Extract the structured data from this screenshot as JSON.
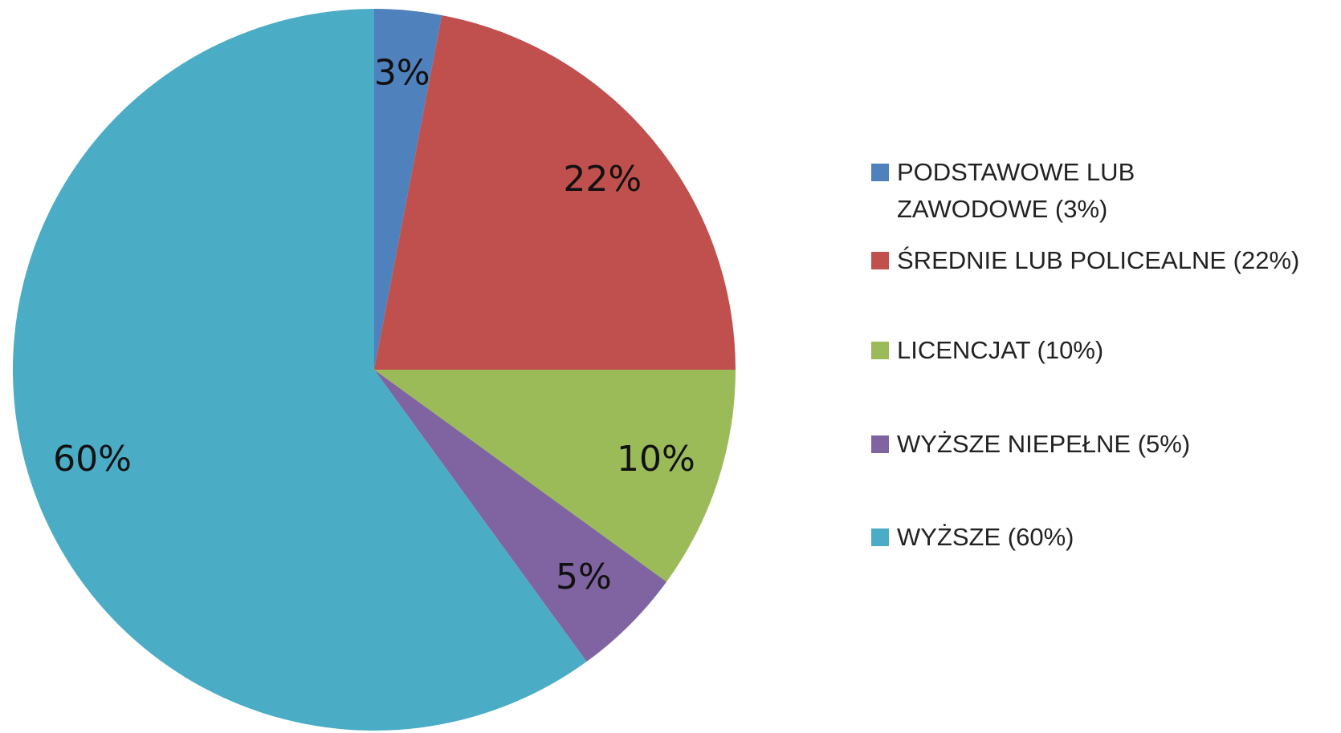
{
  "chart_data": {
    "type": "pie",
    "categories": [
      "PODSTAWOWE LUB ZAWODOWE (3%)",
      "ŚREDNIE LUB POLICEALNE (22%)",
      "LICENCJAT (10%)",
      "WYŻSZE NIEPEŁNE (5%)",
      "WYŻSZE (60%)"
    ],
    "values": [
      3,
      22,
      10,
      5,
      60
    ],
    "value_labels": [
      "3%",
      "22%",
      "10%",
      "5%",
      "60%"
    ],
    "colors": [
      "#4f81bd",
      "#c0504d",
      "#9bbb59",
      "#8064a2",
      "#4bacc6"
    ],
    "legend": "right"
  }
}
